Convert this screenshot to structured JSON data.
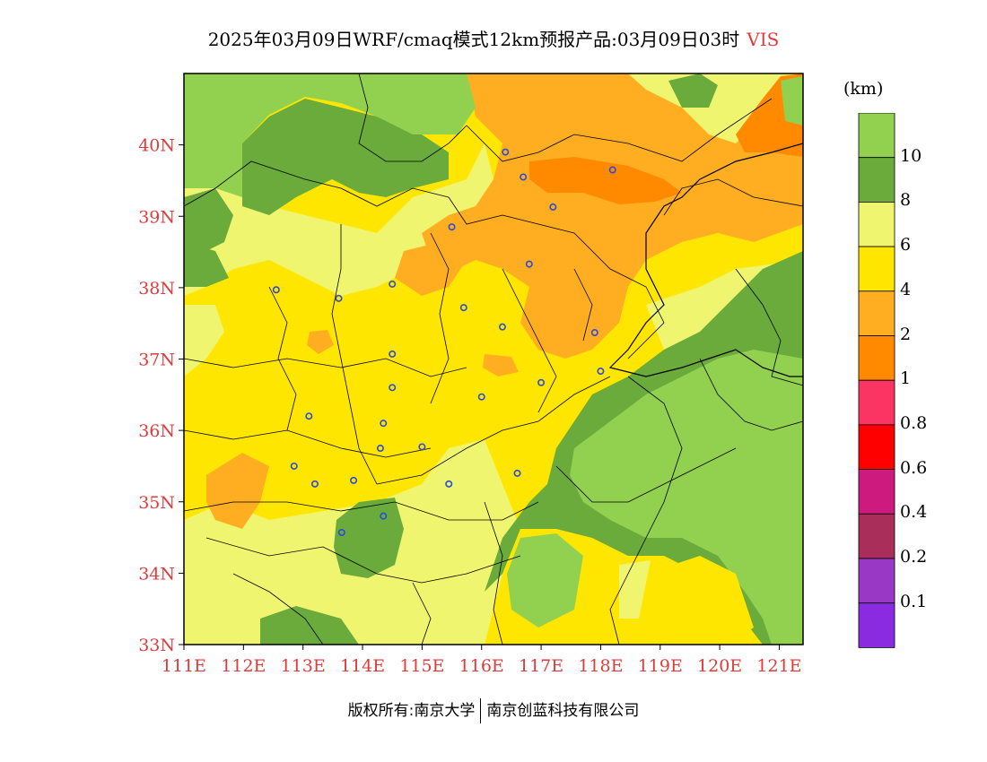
{
  "title": {
    "main": "2025年03月09日WRF/cmaq模式12km预报产品:03月09日03时",
    "variable": "VIS"
  },
  "axes": {
    "lat_labels": [
      "40N",
      "39N",
      "38N",
      "37N",
      "36N",
      "35N",
      "34N",
      "33N"
    ],
    "lon_labels": [
      "111E",
      "112E",
      "113E",
      "114E",
      "115E",
      "116E",
      "117E",
      "118E",
      "119E",
      "120E",
      "121E"
    ],
    "lat_range": [
      33,
      41
    ],
    "lon_range": [
      111,
      121.4
    ]
  },
  "colorbar": {
    "unit": "(km)",
    "levels": [
      "10",
      "8",
      "6",
      "4",
      "2",
      "1",
      "0.8",
      "0.6",
      "0.4",
      "0.2",
      "0.1"
    ],
    "colors": [
      "#92d050",
      "#6aab3b",
      "#f0f570",
      "#ffe600",
      "#ffae22",
      "#ff8a00",
      "#fc3463",
      "#ff0000",
      "#cc1a7e",
      "#aa2e5a",
      "#9a38c6",
      "#8a2be2"
    ]
  },
  "cities": [
    {
      "lon": 116.4,
      "lat": 39.9
    },
    {
      "lon": 116.7,
      "lat": 39.55
    },
    {
      "lon": 117.2,
      "lat": 39.13
    },
    {
      "lon": 118.2,
      "lat": 39.65
    },
    {
      "lon": 115.5,
      "lat": 38.85
    },
    {
      "lon": 116.8,
      "lat": 38.33
    },
    {
      "lon": 112.55,
      "lat": 37.97
    },
    {
      "lon": 113.6,
      "lat": 37.85
    },
    {
      "lon": 114.5,
      "lat": 38.05
    },
    {
      "lon": 115.7,
      "lat": 37.72
    },
    {
      "lon": 116.35,
      "lat": 37.45
    },
    {
      "lon": 117.9,
      "lat": 37.37
    },
    {
      "lon": 114.5,
      "lat": 37.07
    },
    {
      "lon": 118.0,
      "lat": 36.83
    },
    {
      "lon": 117.0,
      "lat": 36.67
    },
    {
      "lon": 114.5,
      "lat": 36.6
    },
    {
      "lon": 116.0,
      "lat": 36.47
    },
    {
      "lon": 113.1,
      "lat": 36.2
    },
    {
      "lon": 114.35,
      "lat": 36.1
    },
    {
      "lon": 114.3,
      "lat": 35.75
    },
    {
      "lon": 115.0,
      "lat": 35.77
    },
    {
      "lon": 112.85,
      "lat": 35.5
    },
    {
      "lon": 116.6,
      "lat": 35.4
    },
    {
      "lon": 113.2,
      "lat": 35.25
    },
    {
      "lon": 113.85,
      "lat": 35.3
    },
    {
      "lon": 115.45,
      "lat": 35.25
    },
    {
      "lon": 114.35,
      "lat": 34.8
    },
    {
      "lon": 113.65,
      "lat": 34.57
    }
  ],
  "footer": {
    "copyright": "版权所有:南京大学",
    "company": "南京创蓝科技有限公司"
  }
}
